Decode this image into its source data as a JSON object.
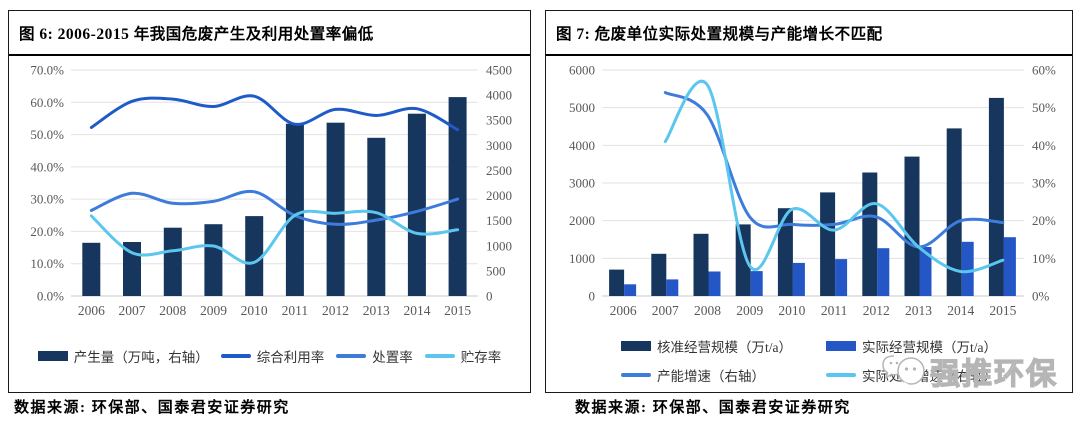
{
  "panels": [
    {
      "title": "图 6: 2006-2015 年我国危废产生及利用处置率偏低",
      "source": "数据来源: 环保部、国泰君安证券研究"
    },
    {
      "title": "图 7: 危废单位实际处置规模与产能增长不匹配",
      "source": "数据来源: 环保部、国泰君安证券研究"
    }
  ],
  "watermark": {
    "text": "强推环保",
    "icon": "chat-bubbles-icon"
  },
  "colors": {
    "navy_bar": "#16365E",
    "royal_bar": "#2457C5",
    "strong_blue_line": "#1F5BC8",
    "mid_blue_line": "#3E7CDB",
    "light_blue_line": "#5BC6EE",
    "gridline": "#E2E2E2",
    "axis_line": "#C8C8C8",
    "tick_text": "#595959",
    "legend_text": "#333333",
    "panel_border": "#1A1A1A"
  },
  "chart_data": [
    {
      "type": "bar",
      "subtype": "combo-bar-line-dual-axis",
      "title": "2006-2015 年我国危废产生及利用处置率偏低",
      "categories": [
        "2006",
        "2007",
        "2008",
        "2009",
        "2010",
        "2011",
        "2012",
        "2013",
        "2014",
        "2015"
      ],
      "left_axis": {
        "min": 0,
        "max": 70,
        "ticks": [
          "0.0%",
          "10.0%",
          "20.0%",
          "30.0%",
          "40.0%",
          "50.0%",
          "60.0%",
          "70.0%"
        ]
      },
      "right_axis": {
        "min": 0,
        "max": 4500,
        "ticks": [
          "0",
          "500",
          "1000",
          "1500",
          "2000",
          "2500",
          "3000",
          "3500",
          "4000",
          "4500"
        ]
      },
      "grid": true,
      "legend_position": "bottom",
      "series": [
        {
          "name": "产生量（万吨，右轴）",
          "kind": "bar",
          "axis": "right",
          "color": "#16365E",
          "values": [
            1060,
            1075,
            1360,
            1430,
            1590,
            3430,
            3450,
            3150,
            3630,
            3960
          ]
        },
        {
          "name": "综合利用率",
          "kind": "line",
          "axis": "left",
          "color": "#1F5BC8",
          "values": [
            52.2,
            60.3,
            61.0,
            58.7,
            61.9,
            53.2,
            57.8,
            55.9,
            58.0,
            51.5
          ]
        },
        {
          "name": "处置率",
          "kind": "line",
          "axis": "left",
          "color": "#3E7CDB",
          "values": [
            26.5,
            31.8,
            28.7,
            29.3,
            32.3,
            24.9,
            22.2,
            23.5,
            26.2,
            30.0
          ]
        },
        {
          "name": "贮存率",
          "kind": "line",
          "axis": "left",
          "color": "#5BC6EE",
          "values": [
            24.8,
            13.4,
            14.0,
            15.5,
            10.4,
            25.0,
            25.6,
            25.8,
            19.4,
            20.5
          ]
        }
      ]
    },
    {
      "type": "bar",
      "subtype": "combo-bar-line-dual-axis",
      "title": "危废单位实际处置规模与产能增长不匹配",
      "categories": [
        "2006",
        "2007",
        "2008",
        "2009",
        "2010",
        "2011",
        "2012",
        "2013",
        "2014",
        "2015"
      ],
      "left_axis": {
        "min": 0,
        "max": 6000,
        "ticks": [
          "0",
          "1000",
          "2000",
          "3000",
          "4000",
          "5000",
          "6000"
        ]
      },
      "right_axis": {
        "min": 0,
        "max": 60,
        "ticks": [
          "0%",
          "10%",
          "20%",
          "30%",
          "40%",
          "50%",
          "60%"
        ]
      },
      "grid": true,
      "legend_position": "bottom",
      "series": [
        {
          "name": "核准经营规模（万t/a）",
          "kind": "bar",
          "axis": "left",
          "color": "#16365E",
          "values": [
            700,
            1120,
            1650,
            1900,
            2330,
            2750,
            3280,
            3700,
            4450,
            5260
          ]
        },
        {
          "name": "实际经营规模（万t/a）",
          "kind": "bar",
          "axis": "left",
          "color": "#2457C5",
          "values": [
            310,
            440,
            650,
            660,
            880,
            980,
            1270,
            1300,
            1440,
            1560
          ]
        },
        {
          "name": "产能增速（右轴）",
          "kind": "line",
          "axis": "right",
          "color": "#3E7CDB",
          "values": [
            null,
            54,
            48,
            21,
            19,
            19,
            21,
            13,
            20,
            19.5
          ]
        },
        {
          "name": "实际处理增速（右轴）",
          "kind": "line",
          "axis": "right",
          "color": "#5BC6EE",
          "values": [
            null,
            41,
            56,
            8,
            23,
            17.5,
            24.5,
            13,
            6.5,
            9.5
          ]
        }
      ]
    }
  ]
}
